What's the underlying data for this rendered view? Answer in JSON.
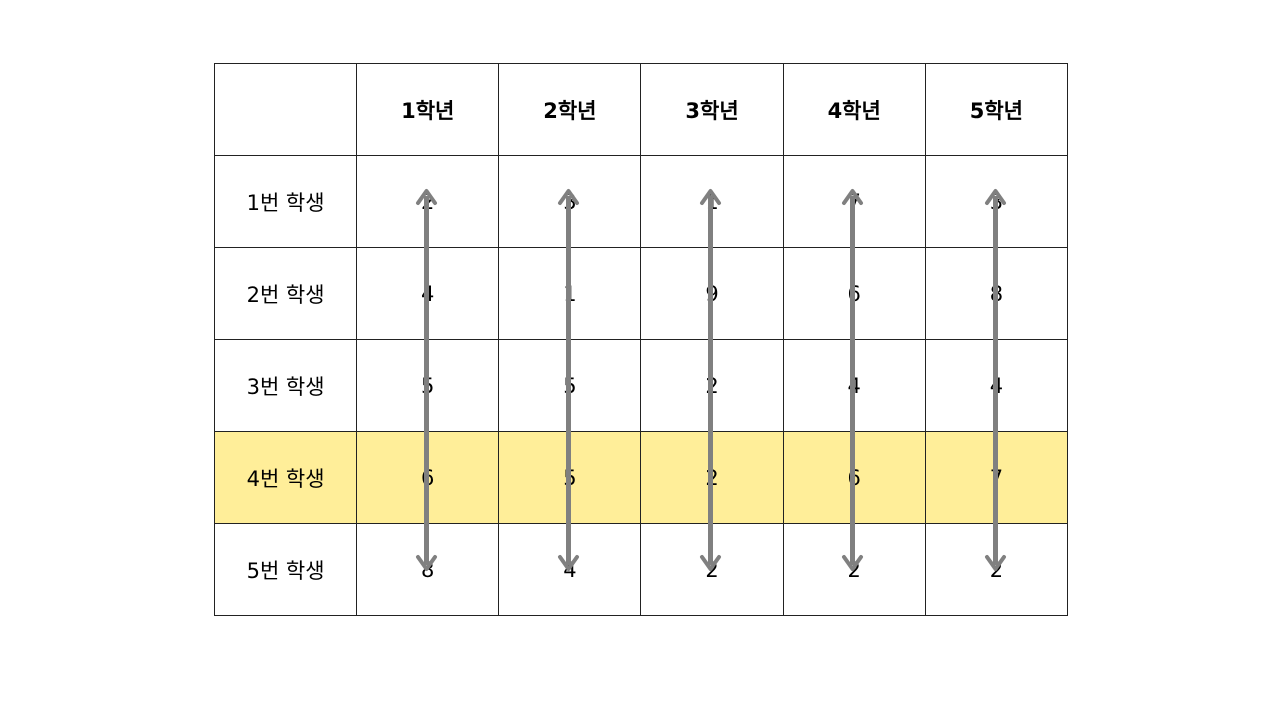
{
  "table": {
    "corner": "",
    "columns": [
      "1학년",
      "2학년",
      "3학년",
      "4학년",
      "5학년"
    ],
    "rows": [
      {
        "label": "1번 학생",
        "values": [
          "2",
          "3",
          "1",
          "7",
          "3"
        ]
      },
      {
        "label": "2번 학생",
        "values": [
          "4",
          "1",
          "9",
          "6",
          "8"
        ]
      },
      {
        "label": "3번 학생",
        "values": [
          "5",
          "5",
          "2",
          "4",
          "4"
        ]
      },
      {
        "label": "4번 학생",
        "values": [
          "6",
          "5",
          "2",
          "6",
          "7"
        ]
      },
      {
        "label": "5번 학생",
        "values": [
          "8",
          "4",
          "2",
          "2",
          "2"
        ]
      }
    ],
    "highlight_row_index": 3,
    "highlight_color": "#ffee99"
  },
  "arrows": {
    "color": "#808080",
    "direction": "vertical-double-headed",
    "columns": [
      0,
      1,
      2,
      3,
      4
    ]
  }
}
